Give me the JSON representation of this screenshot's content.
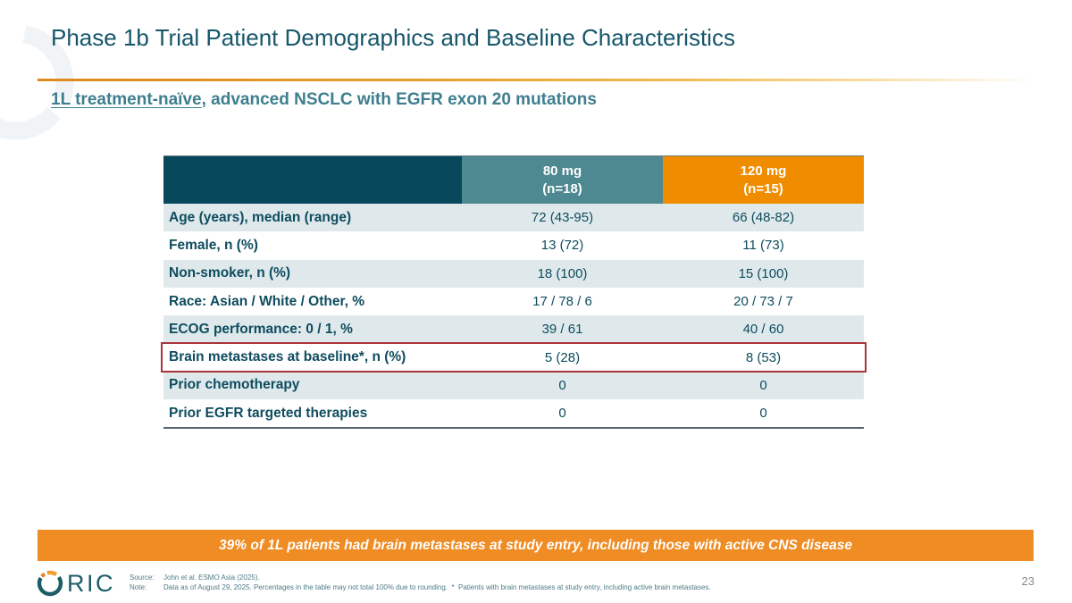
{
  "slide": {
    "title": "Phase 1b Trial Patient Demographics and Baseline Characteristics",
    "subtitle_underlined": "1L treatment-naïve",
    "subtitle_rest": ", advanced NSCLC with EGFR exon 20 mutations",
    "page_number": "23"
  },
  "table": {
    "columns": [
      {
        "label_line1": "80 mg",
        "label_line2": "(n=18)"
      },
      {
        "label_line1": "120 mg",
        "label_line2": "(n=15)"
      }
    ],
    "rows": [
      {
        "label": "Age (years), median (range)",
        "col80": "72 (43-95)",
        "col120": "66 (48-82)",
        "highlight": false
      },
      {
        "label": "Female, n (%)",
        "col80": "13 (72)",
        "col120": "11 (73)",
        "highlight": false
      },
      {
        "label": "Non-smoker, n (%)",
        "col80": "18 (100)",
        "col120": "15 (100)",
        "highlight": false
      },
      {
        "label": "Race: Asian / White / Other, %",
        "col80": "17 / 78 / 6",
        "col120": "20 / 73 / 7",
        "highlight": false
      },
      {
        "label": "ECOG performance: 0 / 1, %",
        "col80": "39 / 61",
        "col120": "40 / 60",
        "highlight": false
      },
      {
        "label": "Brain metastases at baseline*, n (%)",
        "col80": "5 (28)",
        "col120": "8 (53)",
        "highlight": true
      },
      {
        "label": "Prior chemotherapy",
        "col80": "0",
        "col120": "0",
        "highlight": false
      },
      {
        "label": "Prior EGFR targeted therapies",
        "col80": "0",
        "col120": "0",
        "highlight": false
      }
    ]
  },
  "banner": {
    "text": "39% of 1L patients had brain metastases at study entry, including those with active CNS disease"
  },
  "footer": {
    "logo_text": "RIC",
    "source_label": "Source:",
    "source_text": "John et al. ESMO Asia (2025).",
    "note_label": "Note:",
    "note_text": "Data as of August 29, 2025. Percentages in the table may not total 100% due to rounding.  *  Patients with brain metastases at study entry, including active brain metastases."
  },
  "colors": {
    "title_teal": "#16566A",
    "subtitle_teal": "#3E7E8E",
    "header_dark_teal": "#07485C",
    "header_muted_teal": "#4E8891",
    "header_orange": "#F08C00",
    "row_alt_bg": "#DFE9EC",
    "row_text": "#0E4C5E",
    "highlight_red": "#A93439",
    "banner_orange": "#EF8C24",
    "divider_orange": "#DD8A1E",
    "logo_teal": "#1C5D68",
    "logo_orange": "#F09A2C",
    "footnote_teal": "#4E7B86"
  }
}
